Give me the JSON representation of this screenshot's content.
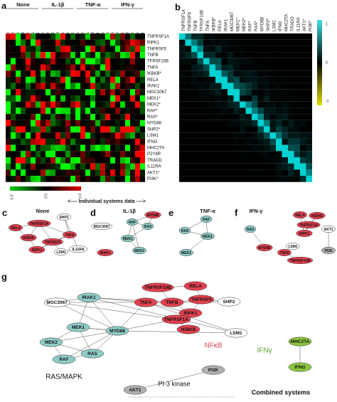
{
  "panel_a": {
    "letter": "a",
    "conditions": [
      "None",
      "IL-1β",
      "TNF-α",
      "IFN-γ"
    ],
    "columns": [
      "E-selectin",
      "HLADR",
      "ICAM-1",
      "IL-8",
      "MCP-1",
      "MIG",
      "VCAM-1"
    ],
    "rows": [
      "TNFRSF1A",
      "RIPK1",
      "TNFRSF5",
      "TNFB",
      "TFRSF10B",
      "TNFA",
      "IKBKB*",
      "RELA",
      "IRAK1",
      "MGC3067",
      "MEK1*",
      "MEK2*",
      "RAF*",
      "RAS*",
      "MYD88",
      "SHP2*",
      "LSM1",
      "IFNG",
      "MHC2TA",
      "P2Y8R",
      "TRADD",
      "IL11RA",
      "AKT1*",
      "PI3K*"
    ],
    "scale": [
      "-2.0",
      "0.0",
      "2.0"
    ]
  },
  "caption": "<---- Individual systems data ---->",
  "panel_b": {
    "letter": "b",
    "columns": [
      "TNFRSF1A",
      "TNFRSF5",
      "TNFB",
      "TFRSF10B",
      "TNFA",
      "IKBKB*",
      "RELA",
      "IRAK1",
      "MGC3067",
      "MEK1*",
      "MEK2*",
      "RAF*",
      "RAS*",
      "MYD88",
      "SHP2*",
      "LSM1",
      "IFNG",
      "MHC2TA",
      "TRADD",
      "IL11RA",
      "AKT1*",
      "PI3K*"
    ],
    "scale": [
      "1",
      "0",
      "-1"
    ]
  },
  "networks": [
    {
      "letter": "c",
      "title": "None",
      "nodes": [
        {
          "label": "RELA",
          "color": "#e0404f"
        },
        {
          "label": "TNFRSF1A",
          "color": "#e0404f"
        },
        {
          "label": "SHP2",
          "color": "#ffffff"
        },
        {
          "label": "TNFA",
          "color": "#e0404f"
        },
        {
          "label": "IKBKB",
          "color": "#e0404f"
        },
        {
          "label": "TNFRSF5",
          "color": "#e0404f"
        },
        {
          "label": "RIPK1",
          "color": "#e0404f"
        },
        {
          "label": "LSM1",
          "color": "#ffffff"
        },
        {
          "label": "IL11RA",
          "color": "#ffffff"
        }
      ]
    },
    {
      "letter": "d",
      "title": "IL-1β",
      "nodes": [
        {
          "label": "MGC3067",
          "color": "#ffffff"
        },
        {
          "label": "RAF",
          "color": "#8ecbc6"
        },
        {
          "label": "RAS",
          "color": "#8ecbc6"
        },
        {
          "label": "MYD88",
          "color": "#e0404f"
        },
        {
          "label": "MEK1",
          "color": "#8ecbc6"
        },
        {
          "label": "MEK2",
          "color": "#8ecbc6"
        },
        {
          "label": "IRAK1",
          "color": "#e0404f"
        }
      ]
    },
    {
      "letter": "e",
      "title": "TNF-α",
      "nodes": [
        {
          "label": "RAF",
          "color": "#8ecbc6"
        },
        {
          "label": "RAS",
          "color": "#8ecbc6"
        },
        {
          "label": "MEK1",
          "color": "#8ecbc6"
        },
        {
          "label": "MEK2",
          "color": "#8ecbc6"
        }
      ]
    },
    {
      "letter": "f",
      "title": "IFN-γ",
      "nodes": [
        {
          "label": "RAS",
          "color": "#8ecbc6"
        },
        {
          "label": "MYD88",
          "color": "#e0404f"
        },
        {
          "label": "RELA",
          "color": "#e0404f"
        },
        {
          "label": "IKBKB",
          "color": "#e0404f"
        },
        {
          "label": "TNFRSF1A",
          "color": "#e0404f"
        },
        {
          "label": "RIPK1",
          "color": "#e0404f"
        },
        {
          "label": "TNFB",
          "color": "#e0404f"
        },
        {
          "label": "TNFRSF10B",
          "color": "#e0404f"
        },
        {
          "label": "AKT1",
          "color": "#ffffff"
        },
        {
          "label": "PI3K",
          "color": "#b0b0b0"
        },
        {
          "label": "LSM1",
          "color": "#ffffff"
        }
      ]
    }
  ],
  "panel_g": {
    "letter": "g",
    "nodes": [
      {
        "label": "RELA",
        "color": "#e0404f"
      },
      {
        "label": "TNFRSF10B",
        "color": "#e0404f"
      },
      {
        "label": "TNFRSF5",
        "color": "#e0404f"
      },
      {
        "label": "TNFB",
        "color": "#e0404f"
      },
      {
        "label": "TNFA",
        "color": "#e0404f"
      },
      {
        "label": "RIPK1",
        "color": "#e0404f"
      },
      {
        "label": "TNFRSF1A",
        "color": "#e0404f"
      },
      {
        "label": "IKBKB",
        "color": "#e0404f"
      },
      {
        "label": "SHP2",
        "color": "#ffffff"
      },
      {
        "label": "MGC3067",
        "color": "#ffffff"
      },
      {
        "label": "IRAK1",
        "color": "#8ecbc6"
      },
      {
        "label": "LSM1",
        "color": "#ffffff"
      },
      {
        "label": "MYD88",
        "color": "#8ecbc6"
      },
      {
        "label": "MEK1",
        "color": "#8ecbc6"
      },
      {
        "label": "MEK2",
        "color": "#8ecbc6"
      },
      {
        "label": "RAS",
        "color": "#8ecbc6"
      },
      {
        "label": "RAF",
        "color": "#8ecbc6"
      },
      {
        "label": "MHC2TA",
        "color": "#8cc63f"
      },
      {
        "label": "IFNG",
        "color": "#8cc63f"
      },
      {
        "label": "PI3K",
        "color": "#b0b0b0"
      },
      {
        "label": "AKT1",
        "color": "#b0b0b0"
      }
    ],
    "groups": [
      {
        "label": "NFκB",
        "color": "#e0404f"
      },
      {
        "label": "IFNγ",
        "color": "#5aa02c"
      },
      {
        "label": "RAS/MAPK",
        "color": "#111111"
      },
      {
        "label": "PI-3 kinase",
        "color": "#111111"
      }
    ],
    "footer": "Combined systems"
  }
}
